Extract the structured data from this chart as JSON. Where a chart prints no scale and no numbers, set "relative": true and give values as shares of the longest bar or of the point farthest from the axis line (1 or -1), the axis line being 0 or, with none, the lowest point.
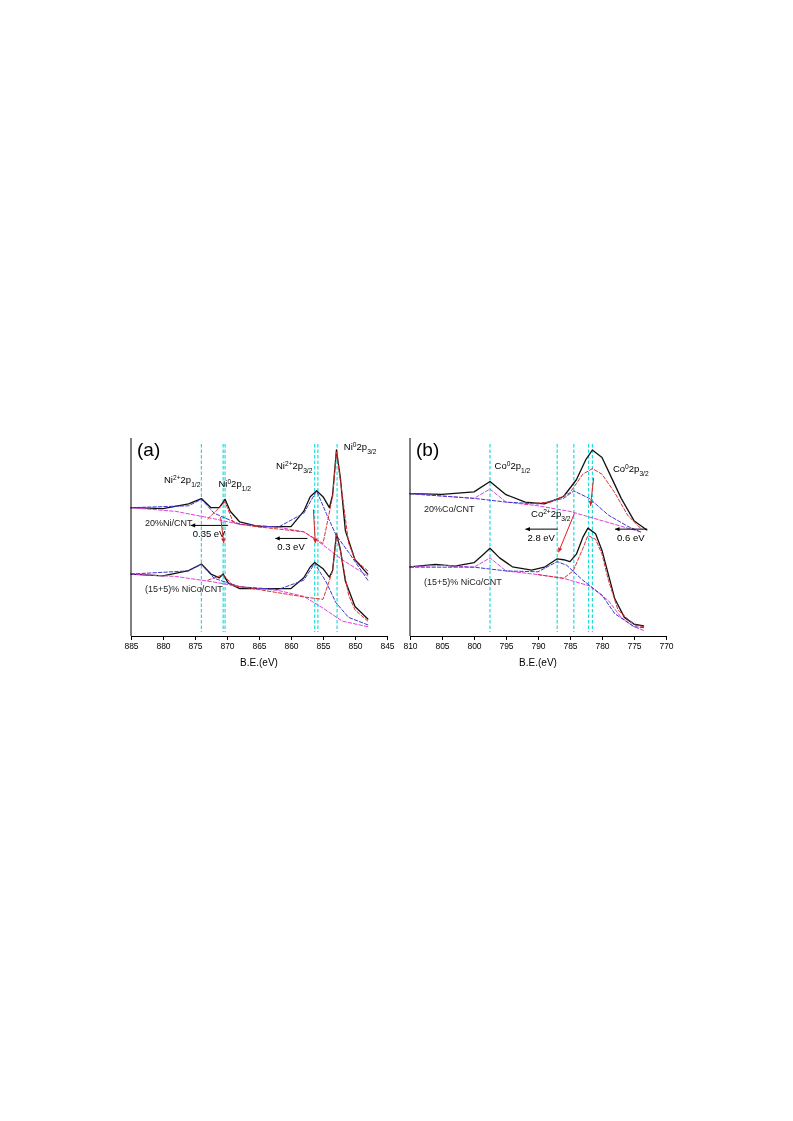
{
  "chart_data": [
    {
      "type": "line",
      "title": "(a)",
      "xlabel": "B.E.(eV)",
      "relative": true,
      "xlim": [
        885,
        845
      ],
      "xticks": [
        885,
        880,
        875,
        870,
        865,
        860,
        855,
        850,
        845
      ],
      "series": [
        {
          "name": "20%Ni/CNT",
          "color": "#111111",
          "line_style": "solid",
          "x": [
            885,
            880,
            876,
            874,
            872.5,
            871.2,
            870.3,
            869.5,
            868,
            865,
            860,
            858,
            857,
            856,
            855,
            854,
            853.5,
            852.9,
            852.3,
            851.5,
            850,
            848
          ],
          "values": [
            0.69,
            0.685,
            0.71,
            0.739,
            0.69,
            0.69,
            0.735,
            0.671,
            0.613,
            0.588,
            0.588,
            0.671,
            0.749,
            0.781,
            0.749,
            0.69,
            0.758,
            1,
            0.855,
            0.565,
            0.41,
            0.333
          ]
        },
        {
          "color": "#e040e0",
          "line_style": "dashed",
          "x": [
            885,
            878,
            872,
            868,
            862,
            858,
            855,
            852,
            848
          ],
          "values": [
            0.69,
            0.67,
            0.63,
            0.6,
            0.585,
            0.56,
            0.49,
            0.41,
            0.323
          ]
        },
        {
          "color": "#3a3acc",
          "line_style": "dashed",
          "x": [
            885,
            876,
            874,
            872,
            868,
            862,
            858,
            856,
            854.5,
            853,
            851,
            848
          ],
          "values": [
            0.69,
            0.7,
            0.735,
            0.66,
            0.6,
            0.585,
            0.66,
            0.78,
            0.66,
            0.545,
            0.45,
            0.3
          ]
        },
        {
          "color": "#e03030",
          "line_style": "dashed",
          "x": [
            873,
            870.3,
            869,
            866,
            858,
            855,
            853.5,
            852.9,
            852.3,
            851,
            850,
            848
          ],
          "values": [
            0.63,
            0.72,
            0.61,
            0.59,
            0.56,
            0.497,
            0.75,
            0.99,
            0.84,
            0.5,
            0.41,
            0.35
          ]
        },
        {
          "name": "(15+5)% NiCo/CNT",
          "color": "#111111",
          "line_style": "solid",
          "x": [
            885,
            880,
            876,
            874,
            872.5,
            871.2,
            870.6,
            869.8,
            868,
            865,
            860,
            858,
            857,
            856.3,
            855,
            854,
            853.5,
            852.9,
            852.3,
            851.5,
            850,
            848
          ],
          "values": [
            0.333,
            0.323,
            0.352,
            0.387,
            0.333,
            0.313,
            0.333,
            0.284,
            0.255,
            0.255,
            0.255,
            0.313,
            0.371,
            0.395,
            0.362,
            0.317,
            0.352,
            0.549,
            0.468,
            0.294,
            0.159,
            0.091
          ]
        },
        {
          "color": "#e040e0",
          "line_style": "dashed",
          "x": [
            885,
            878,
            872,
            868,
            862,
            858,
            855,
            852,
            848
          ],
          "values": [
            0.333,
            0.32,
            0.29,
            0.265,
            0.245,
            0.213,
            0.15,
            0.08,
            0.05
          ]
        },
        {
          "color": "#3a3acc",
          "line_style": "dashed",
          "x": [
            885,
            876,
            874,
            872,
            868,
            862,
            858,
            856.3,
            854.5,
            853,
            851,
            848
          ],
          "values": [
            0.333,
            0.35,
            0.385,
            0.31,
            0.265,
            0.25,
            0.3,
            0.39,
            0.29,
            0.18,
            0.1,
            0.06
          ]
        },
        {
          "color": "#e03030",
          "line_style": "dashed",
          "x": [
            873,
            870.6,
            869,
            866,
            858,
            855,
            853.5,
            852.9,
            852.3,
            851,
            850,
            848
          ],
          "values": [
            0.3,
            0.33,
            0.27,
            0.255,
            0.21,
            0.197,
            0.35,
            0.545,
            0.46,
            0.22,
            0.14,
            0.08
          ]
        }
      ],
      "ref_lines": [
        {
          "axis": "x",
          "value": 874,
          "color": "#22dddd",
          "line_style": "dashed"
        },
        {
          "axis": "x",
          "value": 870.3,
          "color": "#22dddd",
          "line_style": "dashed"
        },
        {
          "axis": "x",
          "value": 870.6,
          "color": "#22dddd",
          "line_style": "dashed"
        },
        {
          "axis": "x",
          "value": 855.8,
          "color": "#22dddd",
          "line_style": "dashed"
        },
        {
          "axis": "x",
          "value": 856.3,
          "color": "#22dddd",
          "line_style": "dashed"
        },
        {
          "axis": "x",
          "value": 852.8,
          "color": "#22dddd",
          "line_style": "dashed"
        }
      ],
      "annotations": [
        "Ni$^{2+}$2p$_{1/2}$",
        "Ni$^{0}$2p$_{1/2}$",
        "Ni$^{2+}$2p$_{3/2}$",
        "Ni$^{0}$2p$_{3/2}$",
        "0.35 eV",
        "0.3 eV"
      ]
    },
    {
      "type": "line",
      "title": "(b)",
      "xlabel": "B.E.(eV)",
      "relative": true,
      "xlim": [
        810,
        770
      ],
      "xticks": [
        810,
        805,
        800,
        795,
        790,
        785,
        780,
        775,
        770
      ],
      "series": [
        {
          "name": "20%Co/CNT",
          "color": "#111111",
          "line_style": "solid",
          "x": [
            810,
            805,
            800,
            797.5,
            795,
            792,
            789,
            786,
            784,
            782.5,
            781.5,
            780,
            778.5,
            777,
            775,
            773
          ],
          "values": [
            0.765,
            0.761,
            0.775,
            0.831,
            0.76,
            0.72,
            0.71,
            0.75,
            0.84,
            0.95,
            1,
            0.96,
            0.85,
            0.74,
            0.62,
            0.57
          ]
        },
        {
          "color": "#e040e0",
          "line_style": "dashed",
          "x": [
            810,
            800,
            797.5,
            795,
            790,
            785,
            782,
            778,
            774
          ],
          "values": [
            0.765,
            0.74,
            0.79,
            0.72,
            0.7,
            0.67,
            0.64,
            0.6,
            0.56
          ]
        },
        {
          "color": "#3a3acc",
          "line_style": "dashed",
          "x": [
            810,
            800,
            795,
            790,
            786,
            784.4,
            782,
            779,
            776,
            774
          ],
          "values": [
            0.765,
            0.74,
            0.72,
            0.71,
            0.74,
            0.78,
            0.74,
            0.65,
            0.59,
            0.56
          ]
        },
        {
          "color": "#e03030",
          "line_style": "dashed",
          "x": [
            792,
            788,
            785,
            783,
            781.5,
            780,
            778,
            776,
            774
          ],
          "values": [
            0.71,
            0.72,
            0.77,
            0.87,
            0.9,
            0.87,
            0.77,
            0.65,
            0.58
          ]
        },
        {
          "name": "(15+5)% NiCo/CNT",
          "color": "#111111",
          "line_style": "solid",
          "x": [
            810,
            806,
            803,
            800,
            798.5,
            797.5,
            796,
            794,
            791,
            789,
            787,
            786,
            785,
            784,
            783,
            782.2,
            781,
            780,
            779,
            778,
            776.5,
            775,
            773.5
          ],
          "values": [
            0.372,
            0.385,
            0.376,
            0.394,
            0.44,
            0.472,
            0.42,
            0.372,
            0.354,
            0.37,
            0.415,
            0.41,
            0.4,
            0.44,
            0.53,
            0.58,
            0.55,
            0.46,
            0.33,
            0.2,
            0.1,
            0.064,
            0.055
          ]
        },
        {
          "color": "#e040e0",
          "line_style": "dashed",
          "x": [
            810,
            805,
            800,
            797.5,
            795,
            790,
            786,
            782,
            779,
            777,
            775,
            773.5
          ],
          "values": [
            0.372,
            0.38,
            0.37,
            0.42,
            0.35,
            0.33,
            0.31,
            0.27,
            0.19,
            0.1,
            0.05,
            0.03
          ]
        },
        {
          "color": "#3a3acc",
          "line_style": "dashed",
          "x": [
            810,
            800,
            795,
            790,
            787,
            785.5,
            783,
            780,
            778,
            775,
            773.5
          ],
          "values": [
            0.37,
            0.37,
            0.35,
            0.345,
            0.4,
            0.38,
            0.3,
            0.22,
            0.12,
            0.05,
            0.045
          ]
        },
        {
          "color": "#e03030",
          "line_style": "dashed",
          "x": [
            790,
            786,
            784.5,
            783,
            782.2,
            781,
            780,
            779,
            777.5,
            775,
            773.5
          ],
          "values": [
            0.33,
            0.31,
            0.35,
            0.47,
            0.54,
            0.52,
            0.44,
            0.3,
            0.14,
            0.06,
            0.05
          ]
        }
      ],
      "ref_lines": [
        {
          "axis": "x",
          "value": 797.5,
          "color": "#22dddd",
          "line_style": "dashed"
        },
        {
          "axis": "x",
          "value": 784.4,
          "color": "#22dddd",
          "line_style": "dashed"
        },
        {
          "axis": "x",
          "value": 781.5,
          "color": "#22dddd",
          "line_style": "dashed"
        },
        {
          "axis": "x",
          "value": 787,
          "color": "#22dddd",
          "line_style": "dashed"
        },
        {
          "axis": "x",
          "value": 782.1,
          "color": "#22dddd",
          "line_style": "dashed"
        }
      ],
      "annotations": [
        "Co$^{0}$2p$_{1/2}$",
        "Co$^{0}$2p$_{3/2}$",
        "Co$^{2+}$2p$_{3/2}$",
        "2.8 eV",
        "0.6 eV"
      ]
    }
  ]
}
